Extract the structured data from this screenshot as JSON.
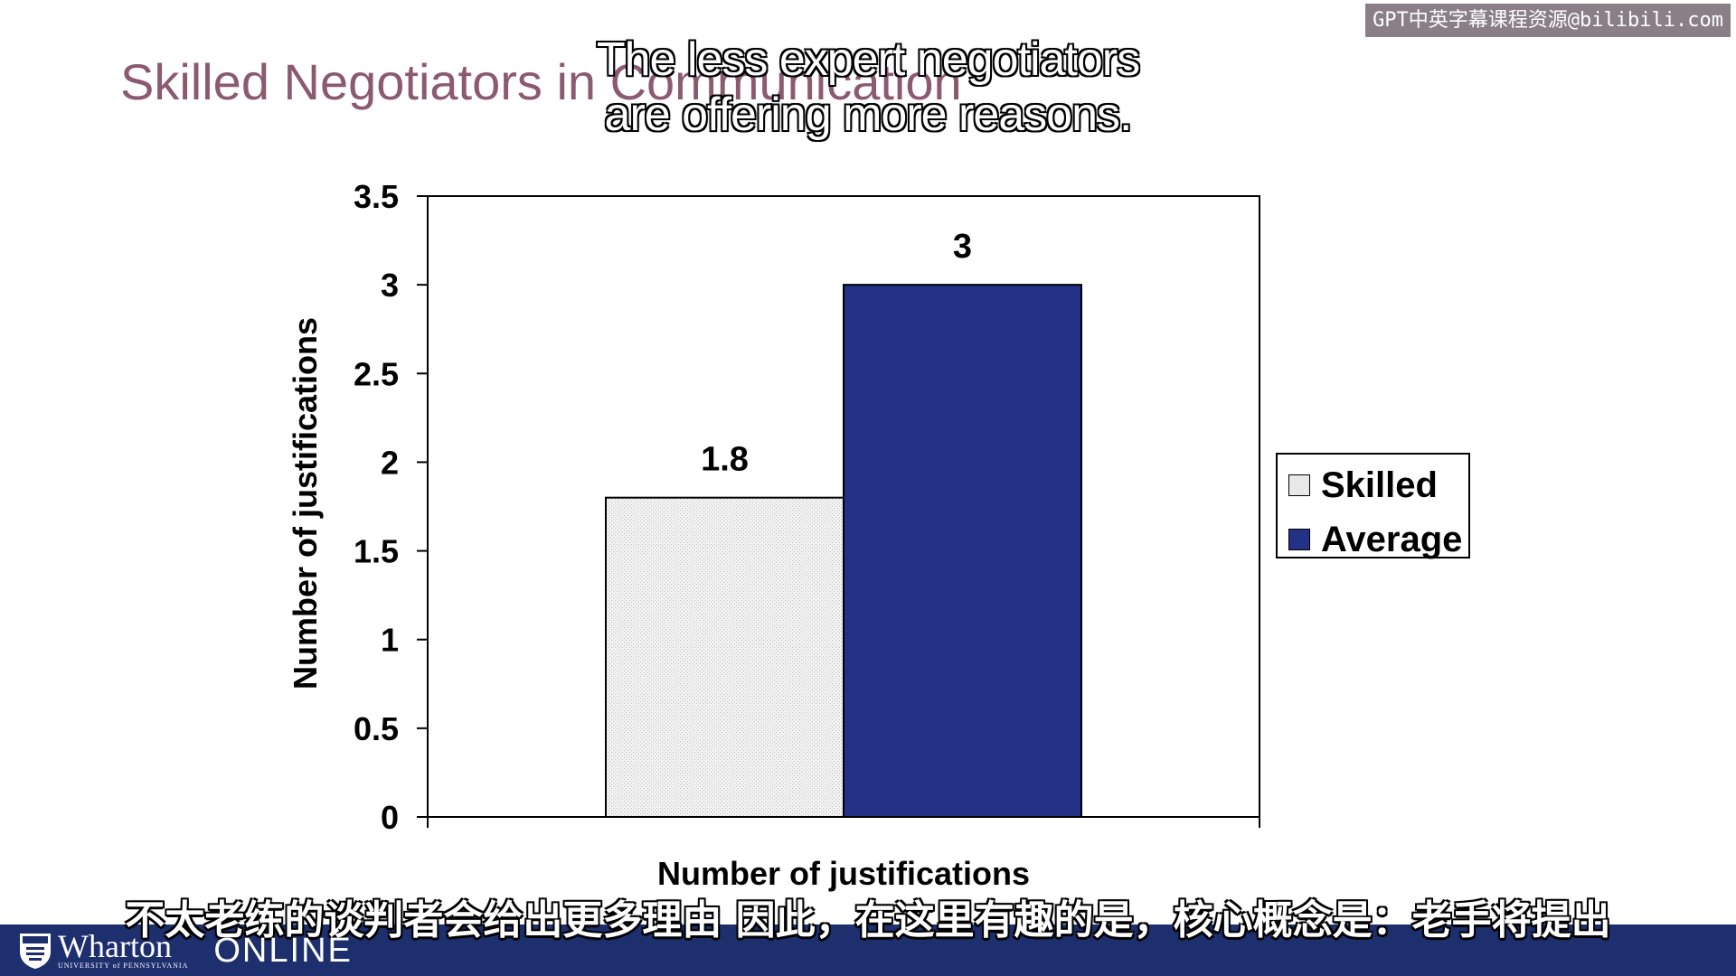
{
  "watermark": "GPT中英字幕课程资源@bilibili.com",
  "slide_title": "Skilled Negotiators in Communication",
  "subtitle_en": [
    "The less expert negotiators",
    "are offering more reasons."
  ],
  "subtitle_zh": "不太老练的谈判者会给出更多理由 因此，在这里有趣的是，核心概念是：老手将提出",
  "footer": {
    "logo_name": "Wharton",
    "logo_sub": "UNIVERSITY of PENNSYLVANIA",
    "online": "ONLINE"
  },
  "colors": {
    "skilled": "#e8e8e8",
    "average": "#233287",
    "title": "#8c5a70",
    "footer": "#1e2f6e"
  },
  "chart_data": {
    "type": "bar",
    "categories": [
      ""
    ],
    "series": [
      {
        "name": "Skilled",
        "values": [
          1.8
        ],
        "color": "#e8e8e8"
      },
      {
        "name": "Average",
        "values": [
          3
        ],
        "color": "#233287"
      }
    ],
    "data_labels": [
      "1.8",
      "3"
    ],
    "ylim": [
      0,
      3.5
    ],
    "yticks": [
      0,
      0.5,
      1,
      1.5,
      2,
      2.5,
      3,
      3.5
    ],
    "ytick_labels": [
      "0",
      "0.5",
      "1",
      "1.5",
      "2",
      "2.5",
      "3",
      "3.5"
    ],
    "xlabel": "Number of justifications",
    "ylabel": "Number of justifications",
    "legend": {
      "position": "right",
      "entries": [
        "Skilled",
        "Average"
      ]
    },
    "grid": false
  }
}
